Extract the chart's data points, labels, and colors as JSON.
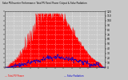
{
  "title": "Solar PV/Inverter Performance Total PV Panel Power Output & Solar Radiation",
  "bg_color": "#c8c8c8",
  "plot_bg_color": "#c8c8c8",
  "red_color": "#ff0000",
  "blue_color": "#0000cc",
  "n_points": 200,
  "ylim": [
    0,
    120
  ],
  "grid_color": "#ffffff",
  "legend_red": "--- Total PV Power",
  "legend_blue": "--- Solar Radiation"
}
